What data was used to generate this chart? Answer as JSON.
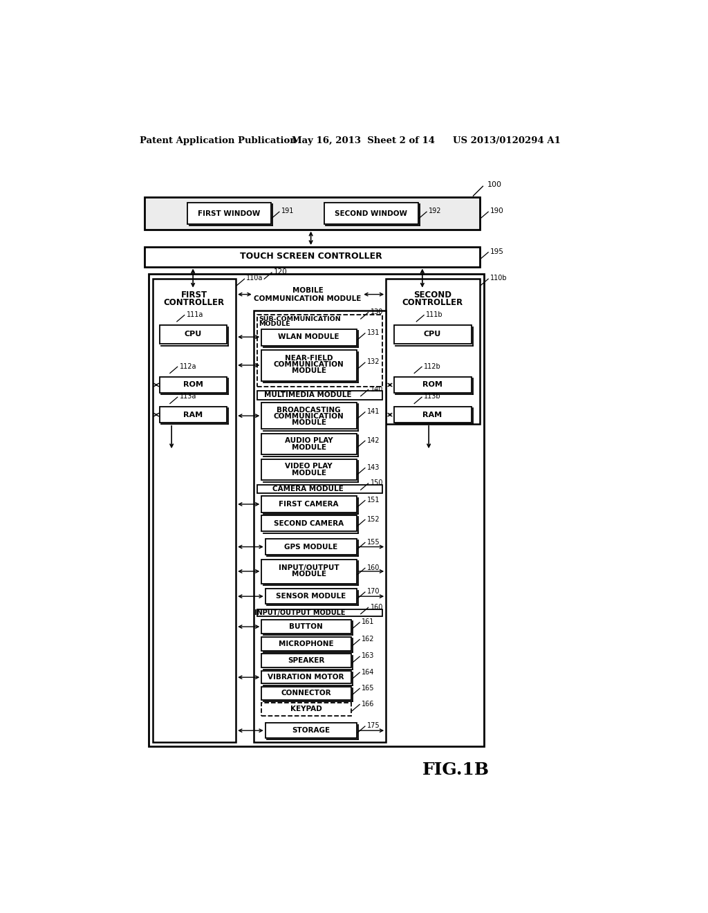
{
  "header_left": "Patent Application Publication",
  "header_mid": "May 16, 2013  Sheet 2 of 14",
  "header_right": "US 2013/0120294 A1",
  "fig_label": "FIG.1B",
  "bg_color": "#ffffff"
}
